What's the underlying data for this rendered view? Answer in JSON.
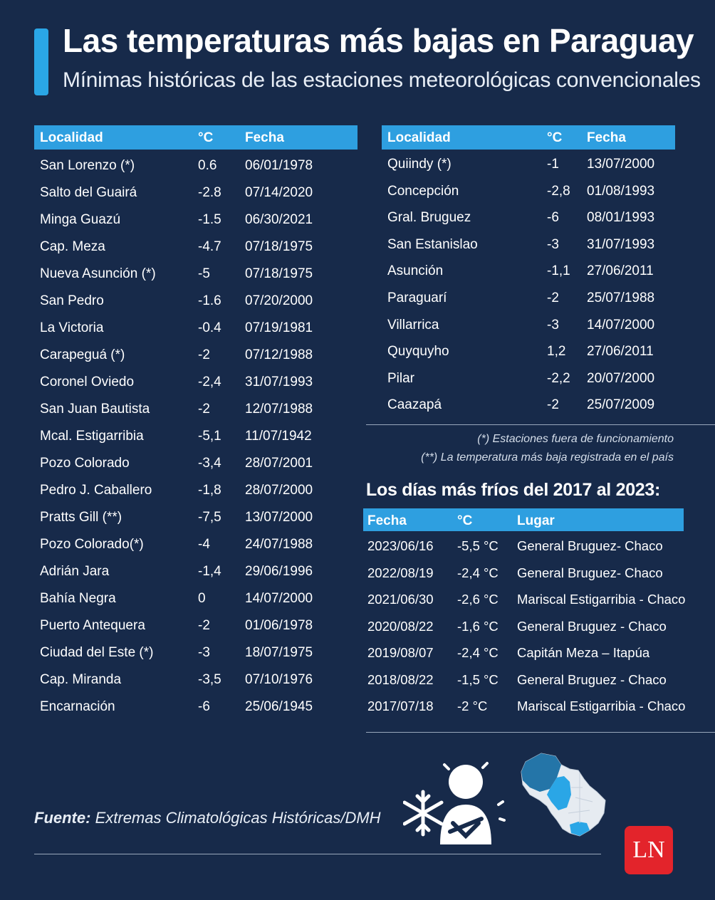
{
  "title": "Las temperaturas más bajas en Paraguay",
  "subtitle": "Mínimas históricas de las estaciones meteorológicas convencionales",
  "left_table": {
    "headers": [
      "Localidad",
      "°C",
      "Fecha"
    ],
    "rows": [
      [
        "San Lorenzo (*)",
        "0.6",
        "06/01/1978"
      ],
      [
        "Salto del Guairá",
        "-2.8",
        "07/14/2020"
      ],
      [
        "Minga Guazú",
        "-1.5",
        "06/30/2021"
      ],
      [
        "Cap. Meza",
        "-4.7",
        "07/18/1975"
      ],
      [
        "Nueva Asunción (*)",
        "-5",
        "07/18/1975"
      ],
      [
        "San Pedro",
        "-1.6",
        "07/20/2000"
      ],
      [
        "La Victoria",
        "-0.4",
        "07/19/1981"
      ],
      [
        "Carapeguá (*)",
        "-2",
        "07/12/1988"
      ],
      [
        "Coronel Oviedo",
        "-2,4",
        "31/07/1993"
      ],
      [
        "San Juan Bautista",
        "-2",
        "12/07/1988"
      ],
      [
        "Mcal. Estigarribia",
        "-5,1",
        "11/07/1942"
      ],
      [
        "Pozo Colorado",
        "-3,4",
        "28/07/2001"
      ],
      [
        "Pedro J. Caballero",
        "-1,8",
        "28/07/2000"
      ],
      [
        "Pratts Gill (**)",
        "-7,5",
        "13/07/2000"
      ],
      [
        "Pozo Colorado(*)",
        "-4",
        "24/07/1988"
      ],
      [
        "Adrián Jara",
        "-1,4",
        "29/06/1996"
      ],
      [
        "Bahía Negra",
        "0",
        "14/07/2000"
      ],
      [
        "Puerto Antequera",
        "-2",
        "01/06/1978"
      ],
      [
        "Ciudad del Este (*)",
        "-3",
        "18/07/1975"
      ],
      [
        "Cap. Miranda",
        "-3,5",
        "07/10/1976"
      ],
      [
        "Encarnación",
        "-6",
        "25/06/1945"
      ]
    ]
  },
  "right_table": {
    "headers": [
      "Localidad",
      "°C",
      "Fecha"
    ],
    "rows": [
      [
        "Quiindy (*)",
        "-1",
        "13/07/2000"
      ],
      [
        "Concepción",
        "-2,8",
        "01/08/1993"
      ],
      [
        "Gral. Bruguez",
        "-6",
        "08/01/1993"
      ],
      [
        "San Estanislao",
        "-3",
        "31/07/1993"
      ],
      [
        "Asunción",
        "-1,1",
        "27/06/2011"
      ],
      [
        "Paraguarí",
        "-2",
        "25/07/1988"
      ],
      [
        "Villarrica",
        "-3",
        "14/07/2000"
      ],
      [
        "Quyquyho",
        "1,2",
        "27/06/2011"
      ],
      [
        "Pilar",
        "-2,2",
        "20/07/2000"
      ],
      [
        "Caazapá",
        "-2",
        "25/07/2009"
      ]
    ]
  },
  "notes": [
    "(*) Estaciones fuera de funcionamiento",
    "(**) La temperatura más baja registrada en el país"
  ],
  "cold_days": {
    "title": "Los días más fríos del 2017 al 2023:",
    "headers": [
      "Fecha",
      "°C",
      "Lugar"
    ],
    "rows": [
      [
        "2023/06/16",
        "-5,5 °C",
        "General Bruguez- Chaco"
      ],
      [
        "2022/08/19",
        "-2,4 °C",
        "General Bruguez- Chaco"
      ],
      [
        "2021/06/30",
        "-2,6 °C",
        "Mariscal Estigarribia - Chaco"
      ],
      [
        "2020/08/22",
        "-1,6 °C",
        "General Bruguez - Chaco"
      ],
      [
        "2019/08/07",
        "-2,4 °C",
        "Capitán Meza – Itapúa"
      ],
      [
        "2018/08/22",
        "-1,5 °C",
        "General Bruguez - Chaco"
      ],
      [
        "2017/07/18",
        "-2 °C",
        "Mariscal Estigarribia - Chaco"
      ]
    ]
  },
  "source": {
    "label": "Fuente:",
    "text": "Extremas Climatológicas Históricas/DMH"
  },
  "logo": {
    "text": "LN",
    "color": "#e3242b"
  },
  "icons": [
    "snowflake-icon",
    "cold-person-icon",
    "paraguay-map-icon"
  ],
  "colors": {
    "background": "#172a4a",
    "header": "#2e9fe0",
    "accent": "#2aa6e6"
  }
}
